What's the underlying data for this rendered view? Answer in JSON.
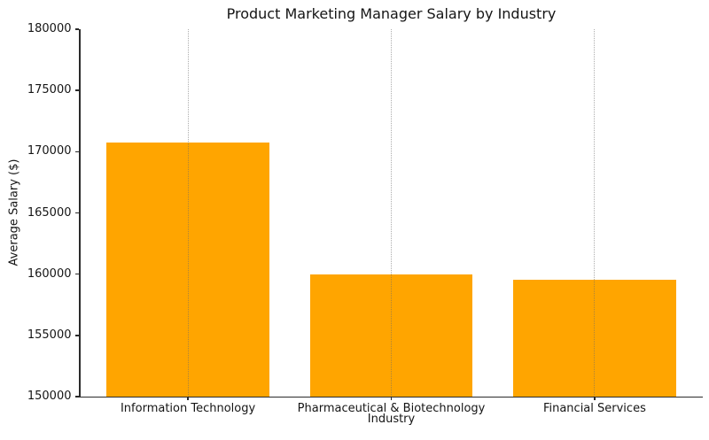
{
  "chart_data": {
    "type": "bar",
    "title": "Product Marketing Manager Salary by Industry",
    "xlabel": "Industry",
    "ylabel": "Average Salary ($)",
    "categories": [
      "Information Technology",
      "Pharmaceutical & Biotechnology",
      "Financial Services"
    ],
    "values": [
      170750,
      159950,
      159550
    ],
    "yticks": [
      150000,
      155000,
      160000,
      165000,
      170000,
      175000,
      180000
    ],
    "ylim": [
      150000,
      180000
    ],
    "xlim": [
      -0.53,
      2.53
    ],
    "bar_width_units": 0.8,
    "grid": "vertical-dotted-at-category-centers",
    "legend": "none",
    "bar_color": "#FFA500"
  },
  "colors": {
    "bar": "#FFA500",
    "spine": "#2b2b2b",
    "grid": "#696969",
    "text": "#151515",
    "background": "#ffffff"
  }
}
